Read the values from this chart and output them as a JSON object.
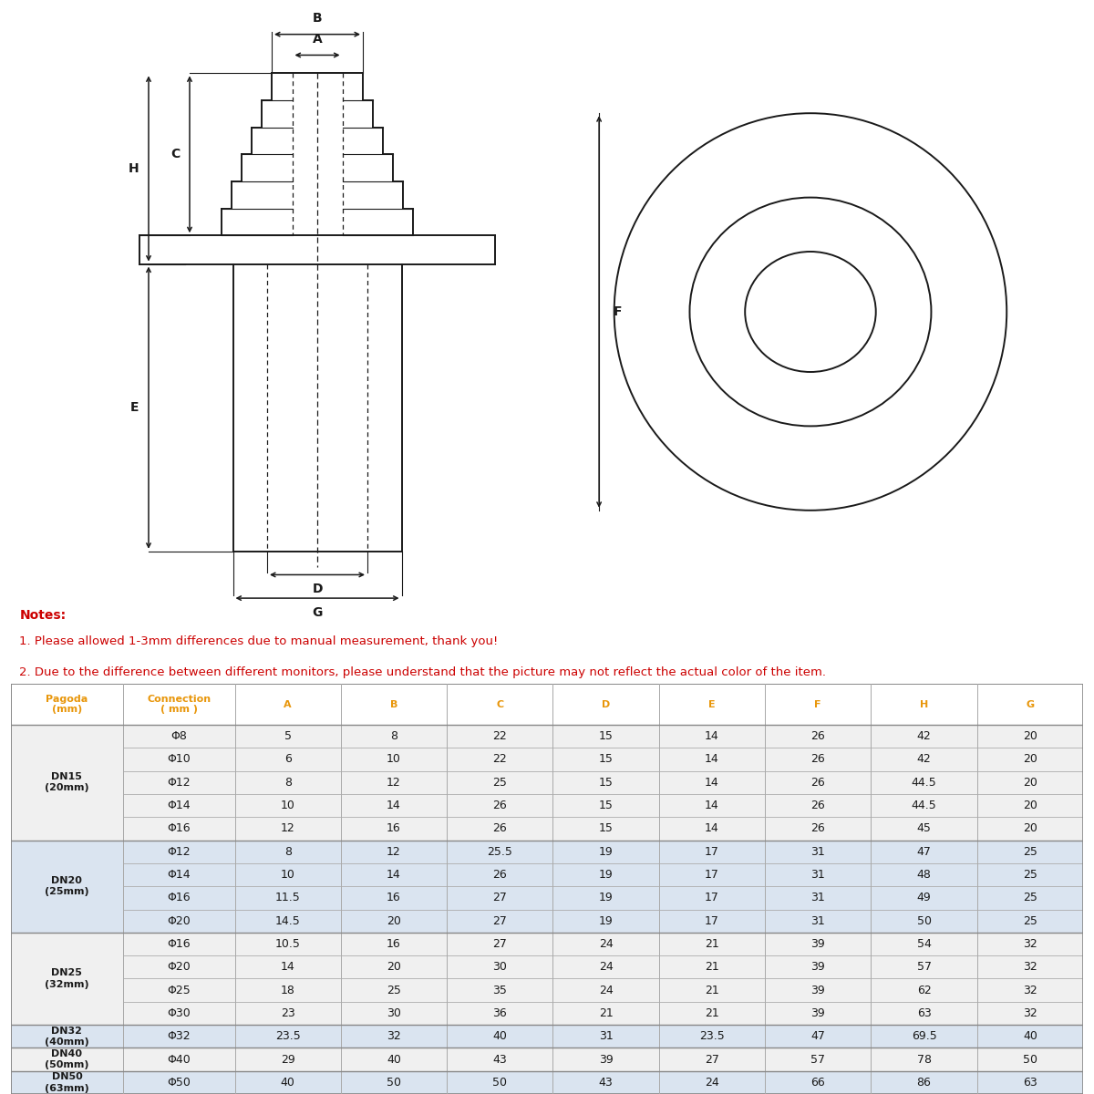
{
  "notes": [
    "Notes:",
    "1. Please allowed 1-3mm differences due to manual measurement, thank you!",
    "2. Due to the difference between different monitors, please understand that the picture may not reflect the actual color of the item."
  ],
  "table_headers": [
    "Pagoda\n(mm)",
    "Connection\n( mm )",
    "A",
    "B",
    "C",
    "D",
    "E",
    "F",
    "H",
    "G"
  ],
  "table_rows": [
    [
      "Φ8",
      "5",
      "8",
      "22",
      "15",
      "14",
      "26",
      "42",
      "20"
    ],
    [
      "Φ10",
      "6",
      "10",
      "22",
      "15",
      "14",
      "26",
      "42",
      "20"
    ],
    [
      "Φ12",
      "8",
      "12",
      "25",
      "15",
      "14",
      "26",
      "44.5",
      "20"
    ],
    [
      "Φ14",
      "10",
      "14",
      "26",
      "15",
      "14",
      "26",
      "44.5",
      "20"
    ],
    [
      "Φ16",
      "12",
      "16",
      "26",
      "15",
      "14",
      "26",
      "45",
      "20"
    ],
    [
      "Φ12",
      "8",
      "12",
      "25.5",
      "19",
      "17",
      "31",
      "47",
      "25"
    ],
    [
      "Φ14",
      "10",
      "14",
      "26",
      "19",
      "17",
      "31",
      "48",
      "25"
    ],
    [
      "Φ16",
      "11.5",
      "16",
      "27",
      "19",
      "17",
      "31",
      "49",
      "25"
    ],
    [
      "Φ20",
      "14.5",
      "20",
      "27",
      "19",
      "17",
      "31",
      "50",
      "25"
    ],
    [
      "Φ16",
      "10.5",
      "16",
      "27",
      "24",
      "21",
      "39",
      "54",
      "32"
    ],
    [
      "Φ20",
      "14",
      "20",
      "30",
      "24",
      "21",
      "39",
      "57",
      "32"
    ],
    [
      "Φ25",
      "18",
      "25",
      "35",
      "24",
      "21",
      "39",
      "62",
      "32"
    ],
    [
      "Φ30",
      "23",
      "30",
      "36",
      "21",
      "21",
      "39",
      "63",
      "32"
    ],
    [
      "Φ32",
      "23.5",
      "32",
      "40",
      "31",
      "23.5",
      "47",
      "69.5",
      "40"
    ],
    [
      "Φ40",
      "29",
      "40",
      "43",
      "39",
      "27",
      "57",
      "78",
      "50"
    ],
    [
      "Φ50",
      "40",
      "50",
      "50",
      "43",
      "24",
      "66",
      "86",
      "63"
    ]
  ],
  "group_spans": [
    {
      "label": "DN15\n(20mm)",
      "start": 0,
      "end": 4
    },
    {
      "label": "DN20\n(25mm)",
      "start": 5,
      "end": 8
    },
    {
      "label": "DN25\n(32mm)",
      "start": 9,
      "end": 12
    },
    {
      "label": "DN32\n(40mm)",
      "start": 13,
      "end": 13
    },
    {
      "label": "DN40\n(50mm)",
      "start": 14,
      "end": 14
    },
    {
      "label": "DN50\n(63mm)",
      "start": 15,
      "end": 15
    }
  ],
  "note_color": "#cc0000",
  "orange": "#e8960a",
  "black": "#1a1a1a",
  "bg_white": "#ffffff",
  "bg_gray": "#f0f0f0",
  "bg_blue": "#dce8f5"
}
